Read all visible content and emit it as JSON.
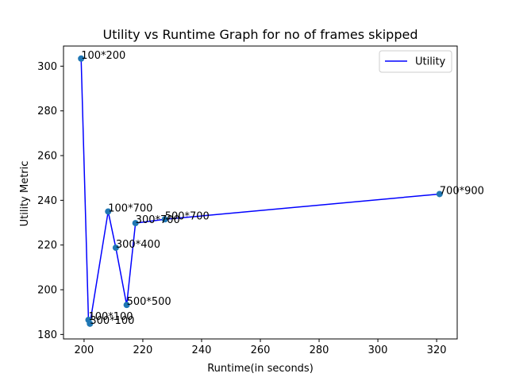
{
  "chart_data": {
    "type": "line",
    "title": "Utility vs Runtime Graph for no of frames skipped",
    "xlabel": "Runtime(in seconds)",
    "ylabel": "Utility Metric",
    "xlim": [
      193,
      327
    ],
    "ylim": [
      178,
      309
    ],
    "xticks": [
      200,
      220,
      240,
      260,
      280,
      300,
      320
    ],
    "yticks": [
      180,
      200,
      220,
      240,
      260,
      280,
      300
    ],
    "grid": false,
    "legend": {
      "placement": "top-right",
      "entries": [
        "Utility"
      ]
    },
    "series": [
      {
        "name": "Utility",
        "color": "#0000ff",
        "marker_color": "#1f77b4",
        "points": [
          {
            "x": 199.0,
            "y": 303.4,
            "label": "100*200"
          },
          {
            "x": 201.5,
            "y": 186.5,
            "label": "100*100"
          },
          {
            "x": 202.0,
            "y": 184.8,
            "label": "300*100"
          },
          {
            "x": 208.2,
            "y": 235.0,
            "label": "100*700"
          },
          {
            "x": 210.8,
            "y": 218.8,
            "label": "300*400"
          },
          {
            "x": 214.5,
            "y": 193.2,
            "label": "500*500"
          },
          {
            "x": 217.5,
            "y": 229.8,
            "label": "300*700"
          },
          {
            "x": 227.5,
            "y": 231.5,
            "label": "500*700"
          },
          {
            "x": 321.0,
            "y": 242.8,
            "label": "700*900"
          }
        ]
      }
    ]
  }
}
